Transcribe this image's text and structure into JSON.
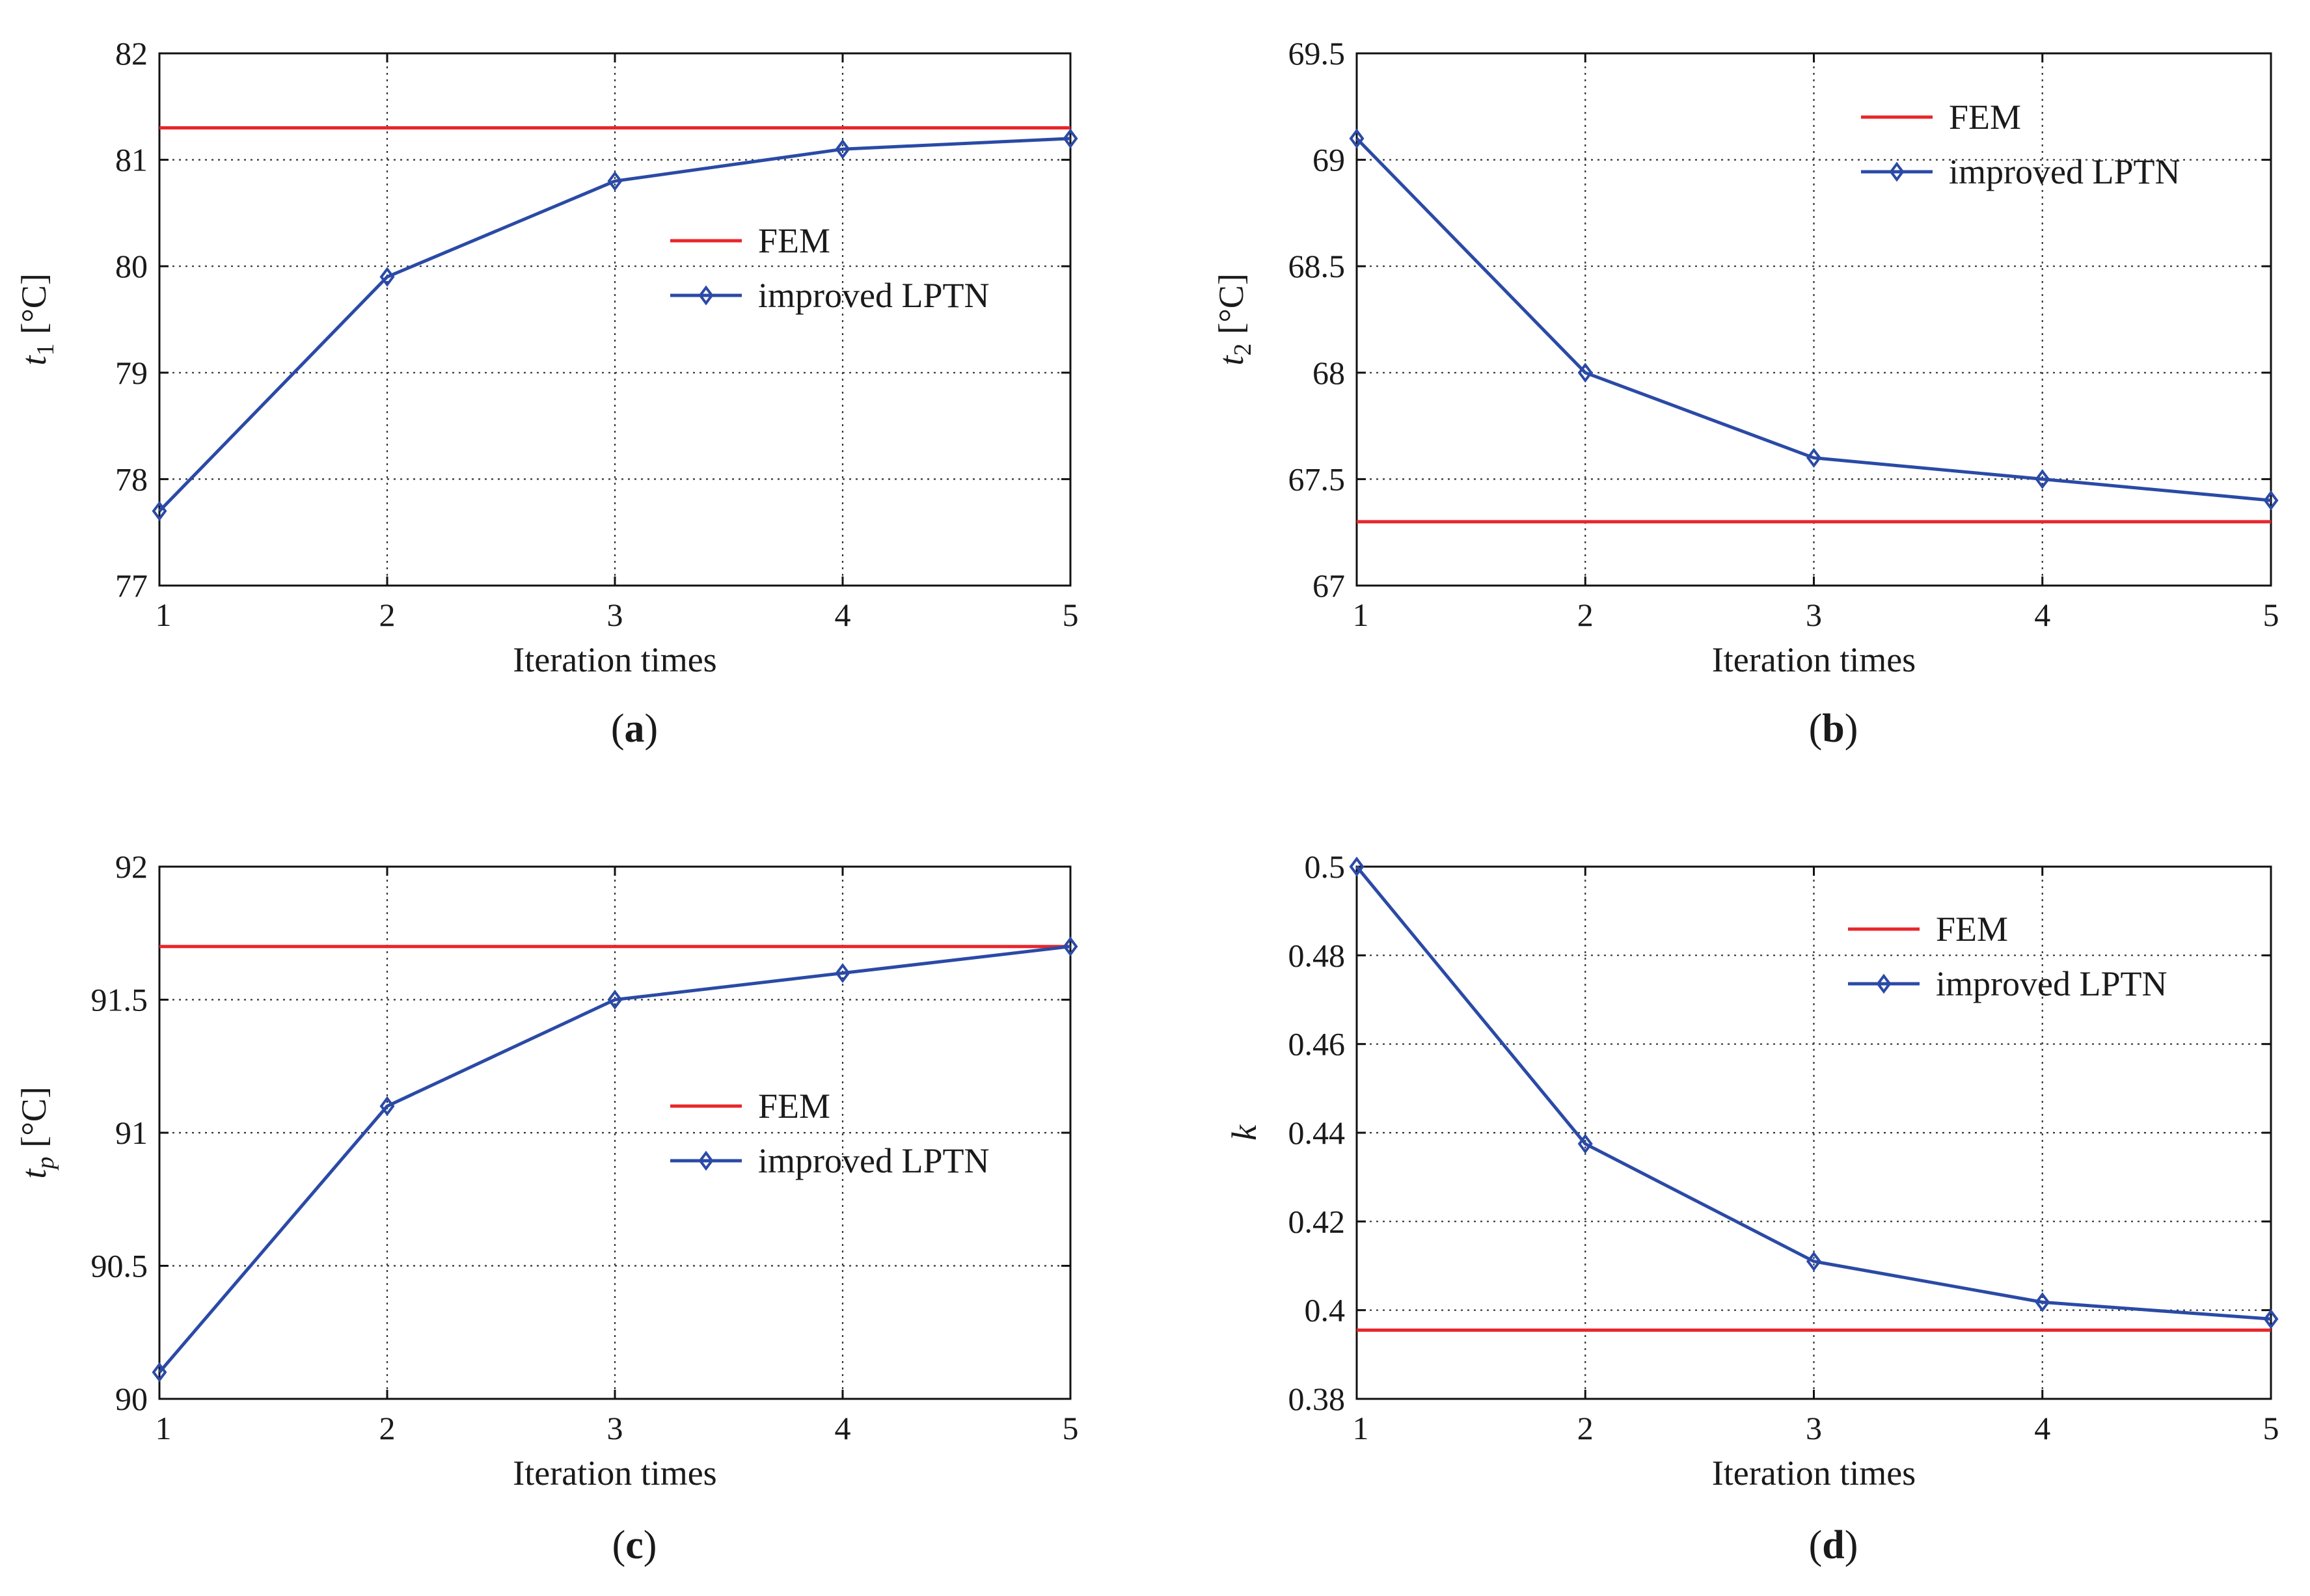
{
  "chart_data": [
    {
      "type": "line",
      "panel": "a",
      "caption_letter": "a",
      "ylabel_symbol": "t",
      "ylabel_sub": "1",
      "ylabel_unit": "[°C]",
      "xlabel": "Iteration times",
      "x": [
        1,
        2,
        3,
        4,
        5
      ],
      "xticks": [
        "1",
        "2",
        "3",
        "4",
        "5"
      ],
      "ylim": [
        77,
        82
      ],
      "yticks": [
        "77",
        "78",
        "79",
        "80",
        "81",
        "82"
      ],
      "yticks_values": [
        77,
        78,
        79,
        80,
        81,
        82
      ],
      "grid": true,
      "legend_placement": "center-right",
      "series": [
        {
          "name": "FEM",
          "color": "#e8262a",
          "constant": 81.3,
          "marker": "none"
        },
        {
          "name": " improved LPTN",
          "color": "#2b4aa6",
          "values": [
            77.7,
            79.9,
            80.8,
            81.1,
            81.2
          ],
          "marker": "diamond"
        }
      ]
    },
    {
      "type": "line",
      "panel": "b",
      "caption_letter": "b",
      "ylabel_symbol": "t",
      "ylabel_sub": "2",
      "ylabel_unit": "[°C]",
      "xlabel": "Iteration times",
      "x": [
        1,
        2,
        3,
        4,
        5
      ],
      "xticks": [
        "1",
        "2",
        "3",
        "4",
        "5"
      ],
      "ylim": [
        67,
        69.5
      ],
      "yticks": [
        "67",
        "67.5",
        "68",
        "68.5",
        "69",
        "69.5"
      ],
      "yticks_values": [
        67,
        67.5,
        68,
        68.5,
        69,
        69.5
      ],
      "grid": true,
      "legend_placement": "top-right",
      "series": [
        {
          "name": "FEM",
          "color": "#e8262a",
          "constant": 67.3,
          "marker": "none"
        },
        {
          "name": " improved LPTN",
          "color": "#2b4aa6",
          "values": [
            69.1,
            68.0,
            67.6,
            67.5,
            67.4
          ],
          "marker": "diamond"
        }
      ]
    },
    {
      "type": "line",
      "panel": "c",
      "caption_letter": "c",
      "ylabel_symbol": "t",
      "ylabel_sub": "p",
      "ylabel_unit": "[°C]",
      "xlabel": "Iteration times",
      "x": [
        1,
        2,
        3,
        4,
        5
      ],
      "xticks": [
        "1",
        "2",
        "3",
        "4",
        "5"
      ],
      "ylim": [
        90,
        92
      ],
      "yticks": [
        "90",
        "90.5",
        "91",
        "91.5",
        "92"
      ],
      "yticks_values": [
        90,
        90.5,
        91,
        91.5,
        92
      ],
      "grid": true,
      "legend_placement": "center-right",
      "series": [
        {
          "name": "FEM",
          "color": "#e8262a",
          "constant": 91.7,
          "marker": "none"
        },
        {
          "name": " improved LPTN",
          "color": "#2b4aa6",
          "values": [
            90.1,
            91.1,
            91.5,
            91.6,
            91.7
          ],
          "marker": "diamond"
        }
      ]
    },
    {
      "type": "line",
      "panel": "d",
      "caption_letter": "d",
      "ylabel_symbol": "k",
      "ylabel_sub": "",
      "ylabel_unit": "",
      "xlabel": "Iteration times",
      "x": [
        1,
        2,
        3,
        4,
        5
      ],
      "xticks": [
        "1",
        "2",
        "3",
        "4",
        "5"
      ],
      "ylim": [
        0.38,
        0.5
      ],
      "yticks": [
        "0.38",
        "0.4",
        "0.42",
        "0.44",
        "0.46",
        "0.48",
        "0.5"
      ],
      "yticks_values": [
        0.38,
        0.4,
        0.42,
        0.44,
        0.46,
        0.48,
        0.5
      ],
      "grid": true,
      "legend_placement": "top-right",
      "series": [
        {
          "name": "FEM",
          "color": "#e8262a",
          "constant": 0.3955,
          "marker": "none"
        },
        {
          "name": " improved LPTN",
          "color": "#2b4aa6",
          "values": [
            0.5,
            0.4375,
            0.411,
            0.4018,
            0.398
          ],
          "marker": "diamond"
        }
      ]
    }
  ]
}
